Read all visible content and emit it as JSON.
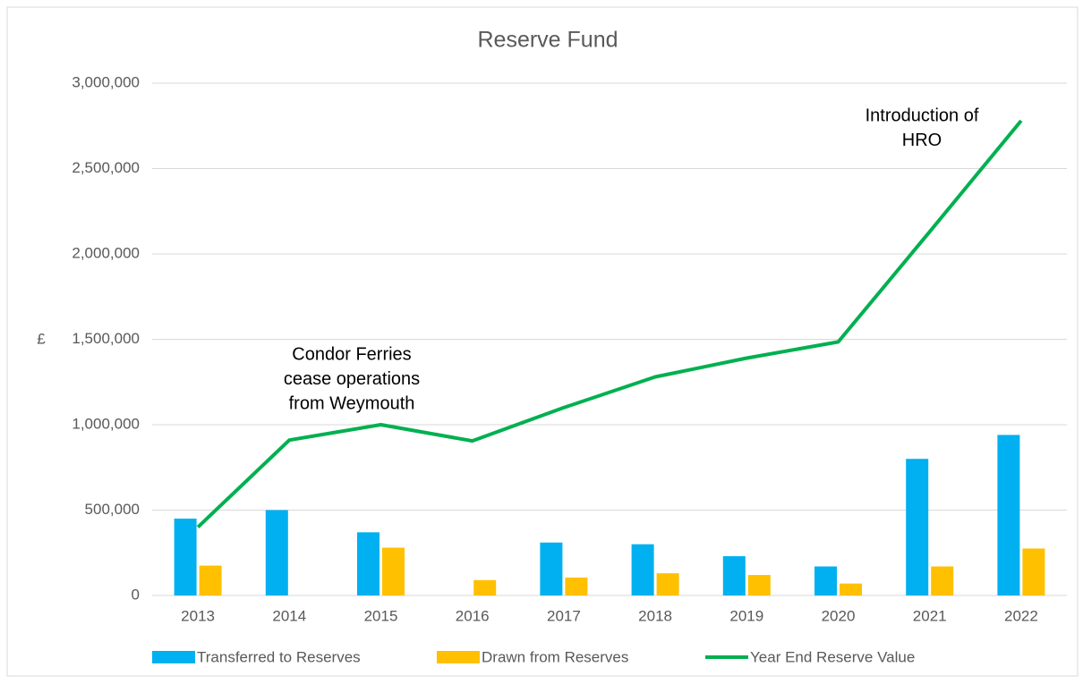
{
  "chart_data": {
    "type": "bar-line",
    "title": "Reserve Fund",
    "y_label": "£",
    "categories": [
      "2013",
      "2014",
      "2015",
      "2016",
      "2017",
      "2018",
      "2019",
      "2020",
      "2021",
      "2022"
    ],
    "series": [
      {
        "name": "Transferred to Reserves",
        "type": "bar",
        "color": "#00b0f0",
        "values": [
          450000,
          500000,
          370000,
          0,
          310000,
          300000,
          230000,
          170000,
          800000,
          940000
        ]
      },
      {
        "name": "Drawn from Reserves",
        "type": "bar",
        "color": "#ffc000",
        "values": [
          175000,
          0,
          280000,
          90000,
          105000,
          130000,
          120000,
          70000,
          170000,
          275000
        ]
      },
      {
        "name": "Year End Reserve Value",
        "type": "line",
        "color": "#00b050",
        "values": [
          400000,
          910000,
          1000000,
          905000,
          1100000,
          1280000,
          1390000,
          1485000,
          2130000,
          2780000
        ]
      }
    ],
    "ylim": [
      0,
      3000000
    ],
    "yticks": [
      0,
      {
        "value": 500000,
        "label": "500,000"
      },
      {
        "value": 1000000,
        "label": "1,000,000"
      },
      {
        "value": 1500000,
        "label": "1,500,000"
      },
      {
        "value": 2000000,
        "label": "2,000,000"
      },
      {
        "value": 2500000,
        "label": "2,500,000"
      },
      {
        "value": 3000000,
        "label": "3,000,000"
      }
    ],
    "grid": true,
    "annotations": [
      {
        "lines": [
          "Condor Ferries",
          "cease operations",
          "from Weymouth"
        ]
      },
      {
        "lines": [
          "Introduction of",
          "HRO"
        ]
      }
    ]
  }
}
